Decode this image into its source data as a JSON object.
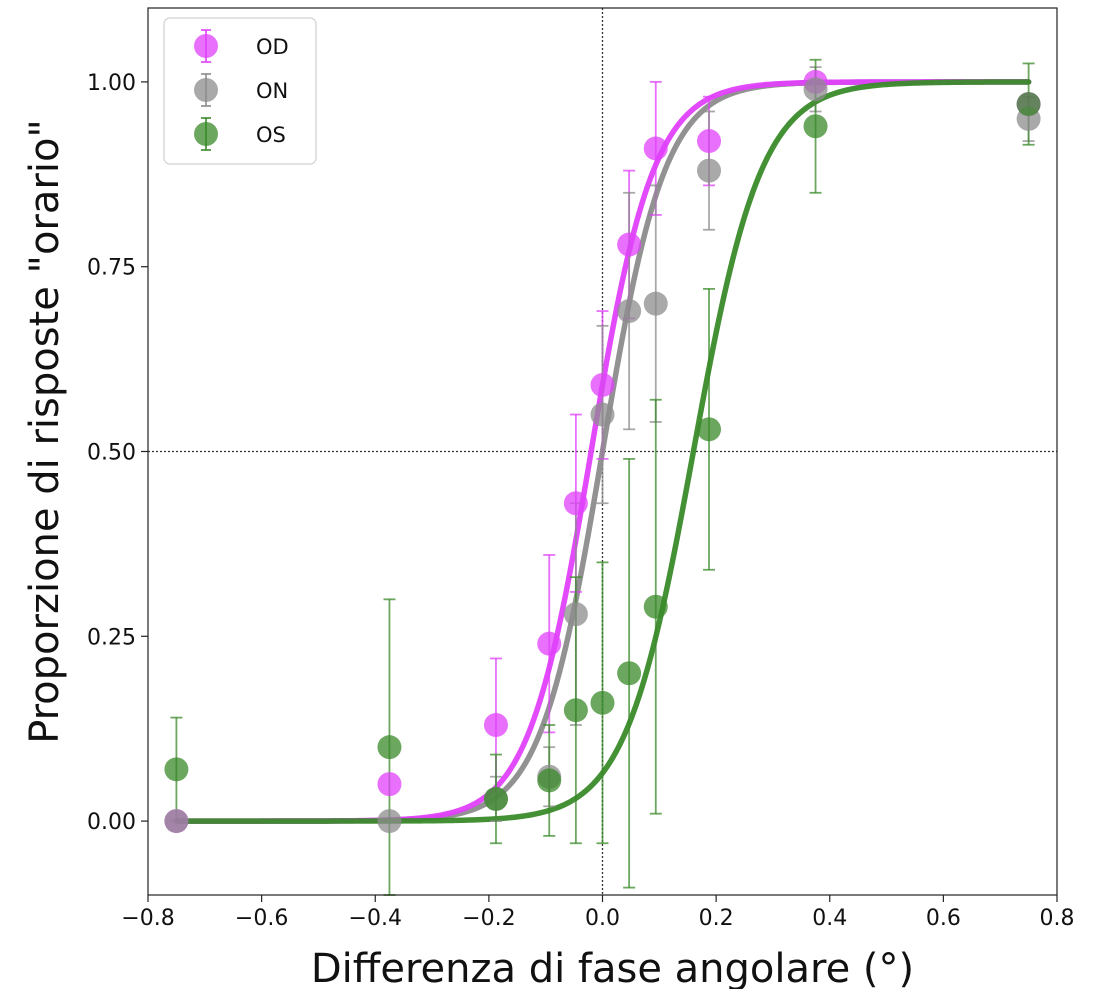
{
  "chart_data": {
    "type": "scatter",
    "xlabel": "Differenza di fase angolare (°)",
    "ylabel": "Proporzione di risposte \"orario\"",
    "xlim": [
      -0.8,
      0.8
    ],
    "ylim": [
      -0.1,
      1.1
    ],
    "xticks": [
      "−0.8",
      "−0.6",
      "−0.4",
      "−0.2",
      "0.0",
      "0.2",
      "0.4",
      "0.6",
      "0.8"
    ],
    "xtick_values": [
      -0.8,
      -0.6,
      -0.4,
      -0.2,
      0.0,
      0.2,
      0.4,
      0.6,
      0.8
    ],
    "yticks": [
      "0.00",
      "0.25",
      "0.50",
      "0.75",
      "1.00"
    ],
    "ytick_values": [
      0.0,
      0.25,
      0.5,
      0.75,
      1.0
    ],
    "reference_lines": {
      "x": 0.0,
      "y": 0.5
    },
    "legend_position": "top-left",
    "series": [
      {
        "name": "OD",
        "color": "#e040fb",
        "points": [
          {
            "x": -0.75,
            "y": 0.0,
            "err": 0.0
          },
          {
            "x": -0.375,
            "y": 0.05,
            "err": 0.0
          },
          {
            "x": -0.1875,
            "y": 0.13,
            "err": 0.09
          },
          {
            "x": -0.09375,
            "y": 0.24,
            "err": 0.12
          },
          {
            "x": -0.046875,
            "y": 0.43,
            "err": 0.12
          },
          {
            "x": 0.0,
            "y": 0.59,
            "err": 0.1
          },
          {
            "x": 0.046875,
            "y": 0.78,
            "err": 0.1
          },
          {
            "x": 0.09375,
            "y": 0.91,
            "err": 0.09
          },
          {
            "x": 0.1875,
            "y": 0.92,
            "err": 0.06
          },
          {
            "x": 0.375,
            "y": 1.0,
            "err": 0.0
          },
          {
            "x": 0.75,
            "y": 0.97,
            "err": 0.0
          }
        ],
        "fit": {
          "x0": -0.02,
          "slope": 0.055
        }
      },
      {
        "name": "ON",
        "color": "#8c8c8c",
        "points": [
          {
            "x": -0.75,
            "y": 0.0,
            "err": 0.0
          },
          {
            "x": -0.375,
            "y": 0.0,
            "err": 0.0
          },
          {
            "x": -0.1875,
            "y": 0.03,
            "err": 0.03
          },
          {
            "x": -0.09375,
            "y": 0.06,
            "err": 0.04
          },
          {
            "x": -0.046875,
            "y": 0.28,
            "err": 0.15
          },
          {
            "x": 0.0,
            "y": 0.55,
            "err": 0.12
          },
          {
            "x": 0.046875,
            "y": 0.69,
            "err": 0.16
          },
          {
            "x": 0.09375,
            "y": 0.7,
            "err": 0.16
          },
          {
            "x": 0.1875,
            "y": 0.88,
            "err": 0.08
          },
          {
            "x": 0.375,
            "y": 0.99,
            "err": 0.03
          },
          {
            "x": 0.75,
            "y": 0.95,
            "err": 0.03
          }
        ],
        "fit": {
          "x0": 0.0,
          "slope": 0.055
        }
      },
      {
        "name": "OS",
        "color": "#3a8a2a",
        "points": [
          {
            "x": -0.75,
            "y": 0.07,
            "err": 0.07
          },
          {
            "x": -0.375,
            "y": 0.1,
            "err": 0.2
          },
          {
            "x": -0.1875,
            "y": 0.03,
            "err": 0.06
          },
          {
            "x": -0.09375,
            "y": 0.055,
            "err": 0.075
          },
          {
            "x": -0.046875,
            "y": 0.15,
            "err": 0.18
          },
          {
            "x": 0.0,
            "y": 0.16,
            "err": 0.19
          },
          {
            "x": 0.046875,
            "y": 0.2,
            "err": 0.29
          },
          {
            "x": 0.09375,
            "y": 0.29,
            "err": 0.28
          },
          {
            "x": 0.1875,
            "y": 0.53,
            "err": 0.19
          },
          {
            "x": 0.375,
            "y": 0.94,
            "err": 0.09
          },
          {
            "x": 0.75,
            "y": 0.97,
            "err": 0.055
          }
        ],
        "fit": {
          "x0": 0.16,
          "slope": 0.06
        }
      }
    ]
  }
}
